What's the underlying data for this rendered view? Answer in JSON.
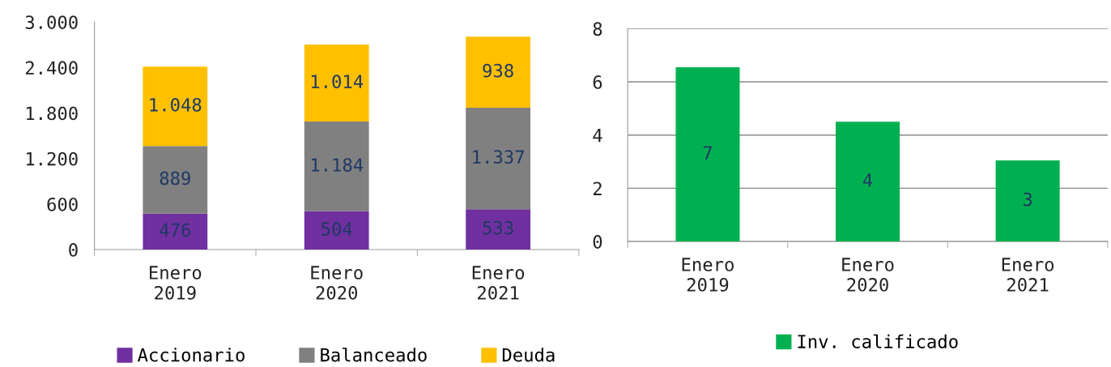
{
  "chart_data": [
    {
      "type": "bar",
      "stacked": true,
      "categories": [
        "Enero\n2019",
        "Enero\n2020",
        "Enero\n2021"
      ],
      "series": [
        {
          "name": "Accionario",
          "color": "#7030a0",
          "values": [
            476,
            504,
            533
          ],
          "value_labels": [
            "476",
            "504",
            "533"
          ]
        },
        {
          "name": "Balanceado",
          "color": "#808080",
          "values": [
            889,
            1184,
            1337
          ],
          "value_labels": [
            "889",
            "1.184",
            "1.337"
          ]
        },
        {
          "name": "Deuda",
          "color": "#ffc000",
          "values": [
            1048,
            1014,
            938
          ],
          "value_labels": [
            "1.048",
            "1.014",
            "938"
          ]
        }
      ],
      "ylim": [
        0,
        3000
      ],
      "yticks": [
        0,
        600,
        {
          "value": 1200,
          "label": "1.200"
        },
        {
          "value": 1800,
          "label": "1.800"
        },
        {
          "value": 2400,
          "label": "2.400"
        },
        {
          "value": 3000,
          "label": "3.000"
        }
      ],
      "grid": false,
      "legend": "bottom"
    },
    {
      "type": "bar",
      "categories": [
        "Enero\n2019",
        "Enero\n2020",
        "Enero\n2021"
      ],
      "series": [
        {
          "name": "Inv. calificado",
          "color": "#00b050",
          "values": [
            6.55,
            4.5,
            3.05
          ],
          "value_labels": [
            "7",
            "4",
            "3"
          ]
        }
      ],
      "ylim": [
        0,
        8
      ],
      "yticks": [
        0,
        2,
        4,
        6,
        8
      ],
      "grid": "y",
      "legend": "bottom"
    }
  ]
}
